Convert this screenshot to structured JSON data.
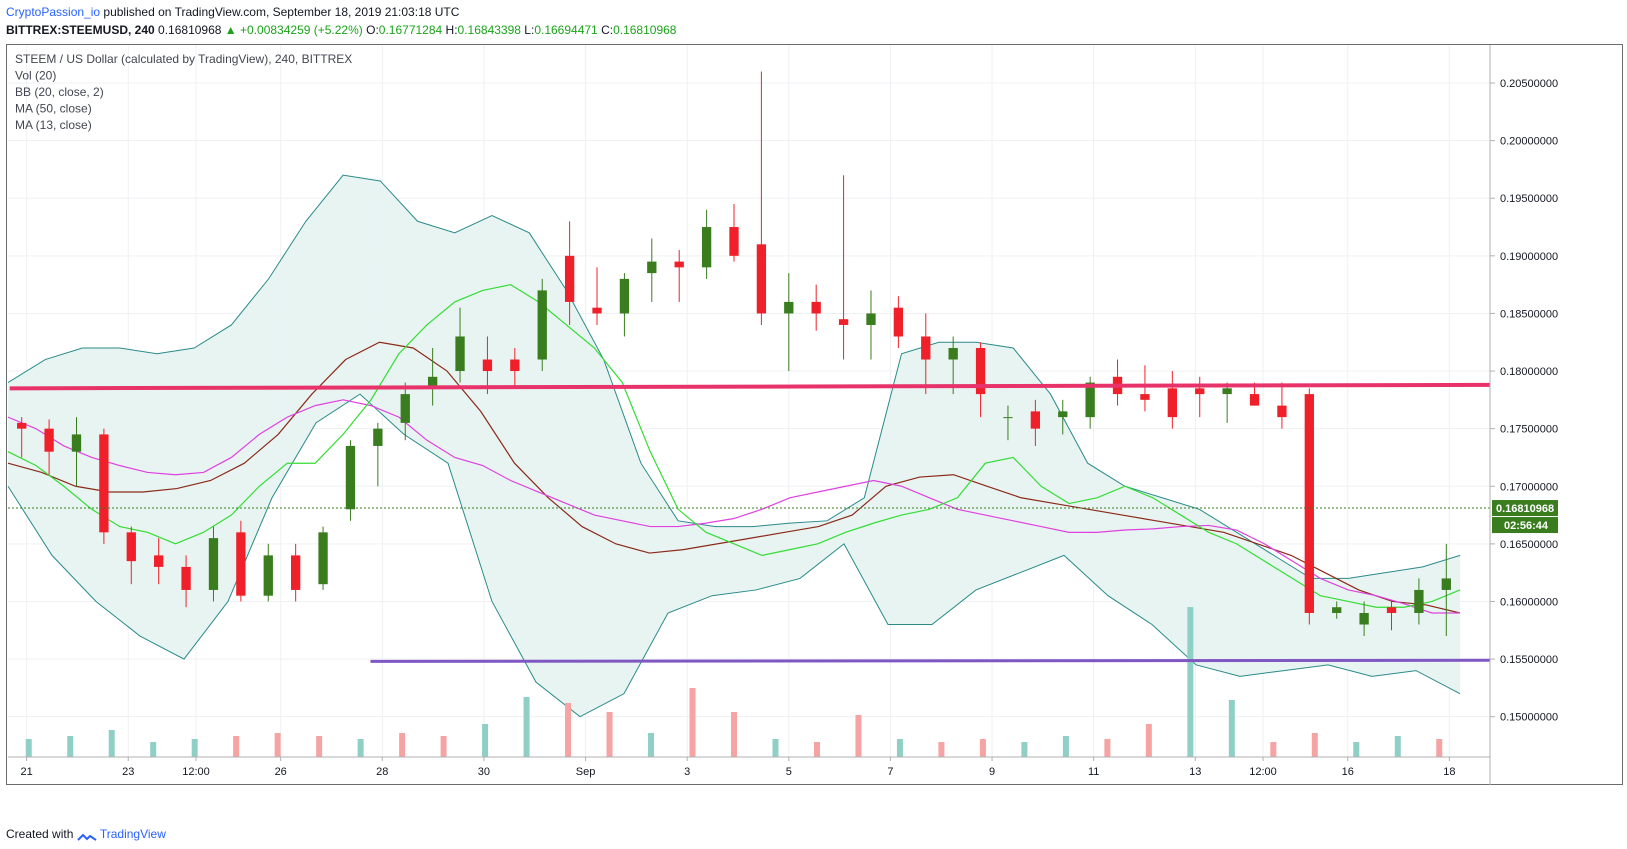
{
  "header": {
    "user": "CryptoPassion_io",
    "text": "published on TradingView.com, September 18, 2019 21:03:18 UTC"
  },
  "ohlc_line": {
    "symbol": "BITTREX:STEEMUSD, 240",
    "last": "0.16810968",
    "change": "▲ +0.00834259 (+5.22%)",
    "o_label": "O:",
    "o": "0.16771284",
    "h_label": "H:",
    "h": "0.16843398",
    "l_label": "L:",
    "l": "0.16694471",
    "c_label": "C:",
    "c": "0.16810968"
  },
  "legend": [
    "STEEM / US Dollar (calculated by TradingView), 240, BITTREX",
    "Vol (20)",
    "BB (20, close, 2)",
    "MA (50, close)",
    "MA (13, close)"
  ],
  "footer": {
    "created": "Created with",
    "brand": "TradingView"
  },
  "colors": {
    "up": "#3a7d1f",
    "down": "#f0202a",
    "vol_up": "#8fcfc6",
    "vol_down": "#f5a3a3",
    "bb": "#2a8a8a",
    "bb_fill": "#e6f3f1",
    "ma50": "#e040e0",
    "ma13": "#33dd33",
    "basis": "#8b2a1a",
    "resistance": "#e8336a",
    "support": "#7e57c2"
  },
  "chart_data": {
    "type": "candlestick",
    "title": "STEEM / US Dollar (calculated by TradingView), 240, BITTREX",
    "y_ticks": [
      "0.20500000",
      "0.20000000",
      "0.19500000",
      "0.19000000",
      "0.18500000",
      "0.18000000",
      "0.17500000",
      "0.17000000",
      "0.16500000",
      "0.16000000",
      "0.15500000",
      "0.15000000"
    ],
    "y_tick_values": [
      0.205,
      0.2,
      0.195,
      0.19,
      0.185,
      0.18,
      0.175,
      0.17,
      0.165,
      0.16,
      0.155,
      0.15
    ],
    "ylim": [
      0.1465,
      0.2083
    ],
    "x_labels": [
      "21",
      "23",
      "12:00",
      "26",
      "28",
      "30",
      "Sep",
      "3",
      "5",
      "7",
      "9",
      "11",
      "13",
      "12:00",
      "16",
      "18"
    ],
    "x_label_positions": [
      0.5,
      6.5,
      10.5,
      15.5,
      21.5,
      27.5,
      33.5,
      39.5,
      45.5,
      51.5,
      57.5,
      63.5,
      69.5,
      73.5,
      78.5,
      84.5
    ],
    "bar_count": 87,
    "last_price_label": "0.16810968",
    "countdown_label": "02:56:44",
    "last_price": 0.16810968,
    "horizontal_lines": [
      {
        "name": "resistance",
        "y": [
          0.1785,
          0.1788
        ],
        "x": [
          -0.5,
          88
        ]
      },
      {
        "name": "support",
        "y": [
          0.1548,
          0.1549
        ],
        "x": [
          20.8,
          87
        ]
      }
    ],
    "candles": [
      [
        0.1755,
        0.176,
        0.1725,
        0.175
      ],
      [
        0.175,
        0.1758,
        0.171,
        0.173
      ],
      [
        0.173,
        0.176,
        0.17,
        0.1745
      ],
      [
        0.1745,
        0.175,
        0.165,
        0.166
      ],
      [
        0.166,
        0.1665,
        0.1615,
        0.1635
      ],
      [
        0.164,
        0.1655,
        0.1615,
        0.163
      ],
      [
        0.163,
        0.164,
        0.1595,
        0.161
      ],
      [
        0.161,
        0.1665,
        0.16,
        0.1655
      ],
      [
        0.166,
        0.167,
        0.16,
        0.1605
      ],
      [
        0.1605,
        0.165,
        0.16,
        0.164
      ],
      [
        0.164,
        0.165,
        0.16,
        0.161
      ],
      [
        0.1615,
        0.1665,
        0.161,
        0.166
      ],
      [
        0.168,
        0.174,
        0.167,
        0.1735
      ],
      [
        0.1735,
        0.1755,
        0.17,
        0.175
      ],
      [
        0.1755,
        0.179,
        0.174,
        0.178
      ],
      [
        0.1785,
        0.182,
        0.177,
        0.1795
      ],
      [
        0.18,
        0.1855,
        0.179,
        0.183
      ],
      [
        0.181,
        0.183,
        0.178,
        0.18
      ],
      [
        0.181,
        0.182,
        0.1785,
        0.18
      ],
      [
        0.181,
        0.188,
        0.18,
        0.187
      ],
      [
        0.19,
        0.193,
        0.184,
        0.186
      ],
      [
        0.1855,
        0.189,
        0.184,
        0.185
      ],
      [
        0.185,
        0.1885,
        0.183,
        0.188
      ],
      [
        0.1885,
        0.1915,
        0.186,
        0.1895
      ],
      [
        0.1895,
        0.1905,
        0.186,
        0.189
      ],
      [
        0.189,
        0.194,
        0.188,
        0.1925
      ],
      [
        0.1925,
        0.1945,
        0.1895,
        0.19
      ],
      [
        0.191,
        0.206,
        0.184,
        0.185
      ],
      [
        0.185,
        0.1885,
        0.18,
        0.186
      ],
      [
        0.186,
        0.1875,
        0.1835,
        0.185
      ],
      [
        0.1845,
        0.197,
        0.181,
        0.184
      ],
      [
        0.184,
        0.187,
        0.181,
        0.185
      ],
      [
        0.1855,
        0.1865,
        0.182,
        0.183
      ],
      [
        0.183,
        0.185,
        0.178,
        0.181
      ],
      [
        0.181,
        0.183,
        0.178,
        0.182
      ],
      [
        0.182,
        0.1825,
        0.176,
        0.178
      ],
      [
        0.176,
        0.177,
        0.174,
        0.176
      ],
      [
        0.1765,
        0.1775,
        0.1735,
        0.175
      ],
      [
        0.176,
        0.1775,
        0.1745,
        0.1765
      ],
      [
        0.176,
        0.1795,
        0.175,
        0.179
      ],
      [
        0.1795,
        0.181,
        0.177,
        0.178
      ],
      [
        0.178,
        0.1805,
        0.1765,
        0.1775
      ],
      [
        0.1785,
        0.18,
        0.175,
        0.176
      ],
      [
        0.1785,
        0.1795,
        0.176,
        0.178
      ],
      [
        0.178,
        0.179,
        0.1755,
        0.1785
      ],
      [
        0.178,
        0.179,
        0.177,
        0.177
      ],
      [
        0.177,
        0.179,
        0.175,
        0.176
      ],
      [
        0.178,
        0.1785,
        0.158,
        0.159
      ],
      [
        0.159,
        0.16,
        0.1585,
        0.1595
      ],
      [
        0.158,
        0.16,
        0.157,
        0.159
      ],
      [
        0.1595,
        0.16,
        0.1575,
        0.159
      ],
      [
        0.159,
        0.162,
        0.158,
        0.161
      ],
      [
        0.161,
        0.165,
        0.157,
        0.162
      ]
    ],
    "candle_note": "",
    "volume": [
      {
        "v": 0.12,
        "d": 1
      },
      {
        "v": 0.14,
        "d": 1
      },
      {
        "v": 0.18,
        "d": 1
      },
      {
        "v": 0.1,
        "d": 1
      },
      {
        "v": 0.12,
        "d": 1
      },
      {
        "v": 0.14,
        "d": 0
      },
      {
        "v": 0.16,
        "d": 0
      },
      {
        "v": 0.14,
        "d": 0
      },
      {
        "v": 0.12,
        "d": 1
      },
      {
        "v": 0.16,
        "d": 0
      },
      {
        "v": 0.14,
        "d": 0
      },
      {
        "v": 0.22,
        "d": 1
      },
      {
        "v": 0.4,
        "d": 1
      },
      {
        "v": 0.36,
        "d": 0
      },
      {
        "v": 0.3,
        "d": 0
      },
      {
        "v": 0.16,
        "d": 1
      },
      {
        "v": 0.46,
        "d": 0
      },
      {
        "v": 0.3,
        "d": 0
      },
      {
        "v": 0.12,
        "d": 1
      },
      {
        "v": 0.1,
        "d": 0
      },
      {
        "v": 0.28,
        "d": 0
      },
      {
        "v": 0.12,
        "d": 1
      },
      {
        "v": 0.1,
        "d": 0
      },
      {
        "v": 0.12,
        "d": 0
      },
      {
        "v": 0.1,
        "d": 1
      },
      {
        "v": 0.14,
        "d": 1
      },
      {
        "v": 0.12,
        "d": 0
      },
      {
        "v": 0.22,
        "d": 0
      },
      {
        "v": 1.0,
        "d": 1
      },
      {
        "v": 0.38,
        "d": 1
      },
      {
        "v": 0.1,
        "d": 0
      },
      {
        "v": 0.16,
        "d": 0
      },
      {
        "v": 0.1,
        "d": 1
      },
      {
        "v": 0.14,
        "d": 1
      },
      {
        "v": 0.12,
        "d": 0
      }
    ],
    "ma13": [
      0.173,
      0.1718,
      0.17,
      0.168,
      0.1665,
      0.166,
      0.165,
      0.166,
      0.1675,
      0.17,
      0.172,
      0.172,
      0.1745,
      0.1775,
      0.1815,
      0.184,
      0.186,
      0.187,
      0.1875,
      0.186,
      0.184,
      0.182,
      0.179,
      0.173,
      0.168,
      0.166,
      0.165,
      0.164,
      0.1645,
      0.165,
      0.166,
      0.1668,
      0.1675,
      0.168,
      0.169,
      0.172,
      0.1725,
      0.17,
      0.1685,
      0.169,
      0.17,
      0.169,
      0.1675,
      0.166,
      0.165,
      0.1635,
      0.162,
      0.1605,
      0.16,
      0.1595,
      0.1595,
      0.16,
      0.161
    ],
    "ma50": [
      0.176,
      0.175,
      0.1735,
      0.1725,
      0.1718,
      0.1712,
      0.171,
      0.1712,
      0.1725,
      0.1745,
      0.176,
      0.177,
      0.1775,
      0.177,
      0.176,
      0.174,
      0.1725,
      0.1718,
      0.1705,
      0.1695,
      0.1685,
      0.1675,
      0.167,
      0.1665,
      0.1665,
      0.1668,
      0.1672,
      0.168,
      0.169,
      0.1695,
      0.17,
      0.1705,
      0.17,
      0.169,
      0.168,
      0.1675,
      0.167,
      0.1665,
      0.166,
      0.166,
      0.1662,
      0.1663,
      0.1665,
      0.1666,
      0.1662,
      0.165,
      0.1635,
      0.162,
      0.161,
      0.1605,
      0.1598,
      0.159,
      0.159
    ],
    "basis": [
      0.172,
      0.1712,
      0.17,
      0.1695,
      0.1695,
      0.1698,
      0.1705,
      0.172,
      0.1745,
      0.178,
      0.181,
      0.1825,
      0.182,
      0.18,
      0.1765,
      0.172,
      0.169,
      0.1665,
      0.165,
      0.1642,
      0.1645,
      0.165,
      0.1655,
      0.166,
      0.1665,
      0.1675,
      0.17,
      0.1708,
      0.171,
      0.17,
      0.169,
      0.1685,
      0.168,
      0.1675,
      0.167,
      0.1665,
      0.166,
      0.165,
      0.164,
      0.1625,
      0.161,
      0.16,
      0.1597,
      0.159
    ],
    "bb_upper": [
      0.179,
      0.181,
      0.182,
      0.182,
      0.1815,
      0.182,
      0.184,
      0.188,
      0.193,
      0.197,
      0.1965,
      0.193,
      0.192,
      0.1935,
      0.192,
      0.187,
      0.181,
      0.172,
      0.167,
      0.1665,
      0.1665,
      0.1668,
      0.167,
      0.169,
      0.1815,
      0.1825,
      0.1825,
      0.182,
      0.178,
      0.172,
      0.17,
      0.169,
      0.168,
      0.166,
      0.164,
      0.162,
      0.162,
      0.1625,
      0.163,
      0.164
    ],
    "bb_lower": [
      0.17,
      0.164,
      0.16,
      0.157,
      0.155,
      0.16,
      0.169,
      0.1755,
      0.178,
      0.1745,
      0.172,
      0.16,
      0.153,
      0.15,
      0.152,
      0.159,
      0.1605,
      0.161,
      0.162,
      0.165,
      0.158,
      0.158,
      0.161,
      0.1625,
      0.164,
      0.1605,
      0.158,
      0.1545,
      0.1535,
      0.154,
      0.1545,
      0.1535,
      0.154,
      0.152
    ]
  },
  "tv_logo": "TradingView"
}
